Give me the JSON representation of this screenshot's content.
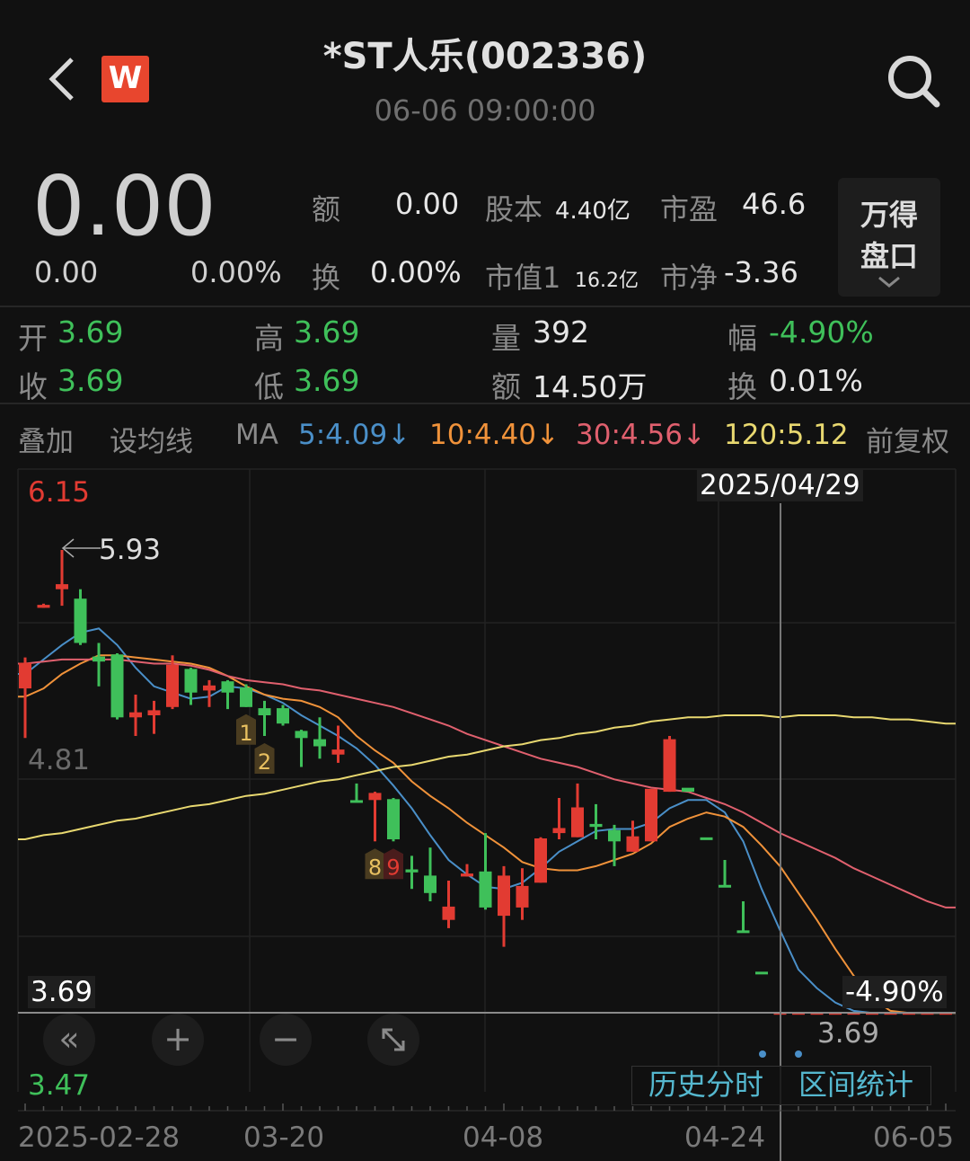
{
  "header": {
    "title": "*ST人乐(002336)",
    "subtitle": "06-06 09:00:00",
    "logo_text": "W"
  },
  "quote": {
    "price": "0.00",
    "change": "0.00",
    "change_pct": "0.00%",
    "amount_label": "额",
    "amount_value": "0.00",
    "turnover_label": "换",
    "turnover_value": "0.00%",
    "share_capital_label": "股本",
    "share_capital_value": "4.40亿",
    "market_cap_label": "市值1",
    "market_cap_value": "16.2亿",
    "pe_label": "市盈",
    "pe_value": "46.6",
    "pb_label": "市净",
    "pb_value": "-3.36",
    "wind_panel_line1": "万得",
    "wind_panel_line2": "盘口"
  },
  "ohlc": {
    "open_label": "开",
    "open_value": "3.69",
    "high_label": "高",
    "high_value": "3.69",
    "volume_label": "量",
    "volume_value": "392",
    "range_label": "幅",
    "range_value": "-4.90%",
    "close_label": "收",
    "close_value": "3.69",
    "low_label": "低",
    "low_value": "3.69",
    "amount_label": "额",
    "amount_value": "14.50万",
    "turnover_label": "换",
    "turnover_value": "0.01%"
  },
  "ma_bar": {
    "overlay": "叠加",
    "set_ma": "设均线",
    "ma_label": "MA",
    "ma5": "5:4.09↓",
    "ma10": "10:4.40↓",
    "ma30": "30:4.56↓",
    "ma120": "120:5.12",
    "adjust": "前复权"
  },
  "colors": {
    "background": "#111111",
    "up": "#e23b32",
    "down": "#3fc05a",
    "ma5": "#4a8fc8",
    "ma10": "#f0923a",
    "ma30": "#e0606e",
    "ma120": "#e8d870",
    "link": "#55b8cf"
  },
  "controls": {
    "back_icon": "chevron-left-icon",
    "search_icon": "search-icon",
    "rewind": "«",
    "zoom_in": "+",
    "zoom_out": "−",
    "fullscreen_icon": "expand-icon",
    "history_intraday": "历史分时",
    "range_stats": "区间统计"
  },
  "chart_data": {
    "type": "candlestick",
    "y_range": [
      3.47,
      6.15
    ],
    "y_labels": {
      "max": "6.15",
      "mid": "4.81",
      "min": "3.47"
    },
    "high_annotation": "5.93",
    "crosshair": {
      "date": "2025/04/29",
      "price": "3.69",
      "change_pct": "-4.90%",
      "index": 41
    },
    "x_tick_labels": [
      {
        "label": "2025-02-28",
        "index": 0
      },
      {
        "label": "03-20",
        "index": 14
      },
      {
        "label": "04-08",
        "index": 26
      },
      {
        "label": "04-24",
        "index": 38
      },
      {
        "label": "06-05",
        "index": 50
      }
    ],
    "candles_ohlc": [
      [
        5.26,
        5.41,
        5.02,
        5.38
      ],
      [
        5.65,
        5.67,
        5.65,
        5.66
      ],
      [
        5.74,
        5.93,
        5.66,
        5.76
      ],
      [
        5.69,
        5.74,
        5.47,
        5.48
      ],
      [
        5.41,
        5.48,
        5.27,
        5.39
      ],
      [
        5.42,
        5.43,
        5.11,
        5.12
      ],
      [
        5.12,
        5.23,
        5.03,
        5.14
      ],
      [
        5.13,
        5.2,
        5.04,
        5.15
      ],
      [
        5.17,
        5.42,
        5.16,
        5.37
      ],
      [
        5.35,
        5.36,
        5.18,
        5.24
      ],
      [
        5.25,
        5.3,
        5.17,
        5.27
      ],
      [
        5.29,
        5.3,
        5.16,
        5.24
      ],
      [
        5.26,
        5.28,
        5.17,
        5.17
      ],
      [
        5.16,
        5.2,
        5.03,
        5.13
      ],
      [
        5.16,
        5.18,
        5.08,
        5.09
      ],
      [
        5.05,
        5.06,
        4.88,
        5.02
      ],
      [
        5.01,
        5.12,
        4.92,
        4.98
      ],
      [
        4.94,
        5.08,
        4.9,
        4.96
      ],
      [
        4.715,
        4.8,
        4.71,
        4.71
      ],
      [
        4.72,
        4.76,
        4.52,
        4.75
      ],
      [
        4.72,
        4.73,
        4.52,
        4.53
      ],
      [
        4.38,
        4.45,
        4.29,
        4.37
      ],
      [
        4.35,
        4.49,
        4.23,
        4.27
      ],
      [
        4.14,
        4.33,
        4.1,
        4.2
      ],
      [
        4.35,
        4.41,
        4.35,
        4.36
      ],
      [
        4.37,
        4.56,
        4.19,
        4.2
      ],
      [
        4.16,
        4.4,
        4.01,
        4.35
      ],
      [
        4.2,
        4.39,
        4.14,
        4.3
      ],
      [
        4.32,
        4.54,
        4.32,
        4.53
      ],
      [
        4.56,
        4.73,
        4.53,
        4.58
      ],
      [
        4.54,
        4.8,
        4.54,
        4.68
      ],
      [
        4.6,
        4.7,
        4.53,
        4.59
      ],
      [
        4.57,
        4.6,
        4.4,
        4.52
      ],
      [
        4.47,
        4.62,
        4.47,
        4.54
      ],
      [
        4.52,
        4.77,
        4.52,
        4.77
      ],
      [
        4.76,
        5.03,
        4.76,
        5.01
      ],
      [
        4.775,
        4.775,
        4.76,
        4.76
      ],
      [
        4.535,
        4.535,
        4.53,
        4.53
      ],
      [
        4.305,
        4.43,
        4.3,
        4.3
      ],
      [
        4.085,
        4.23,
        4.08,
        4.08
      ],
      [
        3.885,
        3.885,
        3.88,
        3.88
      ],
      [
        3.69,
        3.69,
        3.69,
        3.69
      ],
      [
        3.69,
        3.69,
        3.69,
        3.69
      ],
      [
        3.69,
        3.69,
        3.69,
        3.69
      ],
      [
        3.69,
        3.69,
        3.69,
        3.69
      ],
      [
        3.69,
        3.69,
        3.69,
        3.69
      ],
      [
        3.69,
        3.69,
        3.69,
        3.69
      ],
      [
        3.69,
        3.69,
        3.69,
        3.69
      ],
      [
        3.69,
        3.69,
        3.69,
        3.69
      ],
      [
        3.69,
        3.69,
        3.69,
        3.69
      ],
      [
        3.69,
        3.69,
        3.69,
        3.69
      ]
    ],
    "markers": [
      {
        "index": 12,
        "label": "1",
        "color": "#e8c060"
      },
      {
        "index": 13,
        "label": "2",
        "color": "#e8c060"
      },
      {
        "index": 19,
        "label": "8",
        "color": "#e8c060"
      },
      {
        "index": 20,
        "label": "9",
        "color": "#e23b32"
      }
    ],
    "series": [
      {
        "name": "MA5",
        "values": [
          5.33,
          5.4,
          5.47,
          5.53,
          5.55,
          5.47,
          5.36,
          5.27,
          5.24,
          5.21,
          5.22,
          5.27,
          5.26,
          5.23,
          5.19,
          5.13,
          5.08,
          5.03,
          4.97,
          4.89,
          4.79,
          4.68,
          4.55,
          4.43,
          4.36,
          4.3,
          4.29,
          4.32,
          4.39,
          4.47,
          4.52,
          4.57,
          4.58,
          4.58,
          4.61,
          4.68,
          4.72,
          4.72,
          4.66,
          4.52,
          4.29,
          4.09,
          3.9,
          3.81,
          3.74,
          3.7,
          3.69,
          3.69,
          3.69,
          3.69,
          3.69
        ]
      },
      {
        "name": "MA10",
        "values": [
          5.22,
          5.26,
          5.33,
          5.38,
          5.42,
          5.42,
          5.41,
          5.4,
          5.39,
          5.38,
          5.36,
          5.32,
          5.27,
          5.23,
          5.21,
          5.2,
          5.17,
          5.12,
          5.03,
          4.96,
          4.9,
          4.81,
          4.74,
          4.68,
          4.61,
          4.55,
          4.49,
          4.42,
          4.39,
          4.38,
          4.38,
          4.4,
          4.43,
          4.46,
          4.51,
          4.59,
          4.63,
          4.66,
          4.64,
          4.59,
          4.5,
          4.4,
          4.27,
          4.14,
          4.0,
          3.87,
          3.76,
          3.7,
          3.69,
          3.69,
          3.69
        ]
      },
      {
        "name": "MA30",
        "values": [
          5.38,
          5.39,
          5.4,
          5.4,
          5.4,
          5.4,
          5.39,
          5.38,
          5.38,
          5.37,
          5.35,
          5.32,
          5.3,
          5.29,
          5.28,
          5.26,
          5.25,
          5.23,
          5.21,
          5.19,
          5.17,
          5.14,
          5.11,
          5.08,
          5.04,
          5.01,
          4.98,
          4.95,
          4.92,
          4.9,
          4.88,
          4.85,
          4.82,
          4.8,
          4.78,
          4.77,
          4.76,
          4.73,
          4.7,
          4.66,
          4.61,
          4.56,
          4.52,
          4.48,
          4.44,
          4.39,
          4.35,
          4.31,
          4.27,
          4.23,
          4.2
        ]
      },
      {
        "name": "MA120",
        "values": [
          4.53,
          4.55,
          4.56,
          4.58,
          4.6,
          4.62,
          4.63,
          4.65,
          4.67,
          4.69,
          4.7,
          4.72,
          4.74,
          4.75,
          4.77,
          4.79,
          4.81,
          4.82,
          4.84,
          4.86,
          4.88,
          4.89,
          4.91,
          4.93,
          4.94,
          4.96,
          4.98,
          4.99,
          5.01,
          5.02,
          5.04,
          5.05,
          5.07,
          5.08,
          5.1,
          5.11,
          5.12,
          5.12,
          5.13,
          5.13,
          5.13,
          5.12,
          5.13,
          5.13,
          5.13,
          5.12,
          5.12,
          5.11,
          5.11,
          5.1,
          5.09
        ]
      }
    ]
  }
}
